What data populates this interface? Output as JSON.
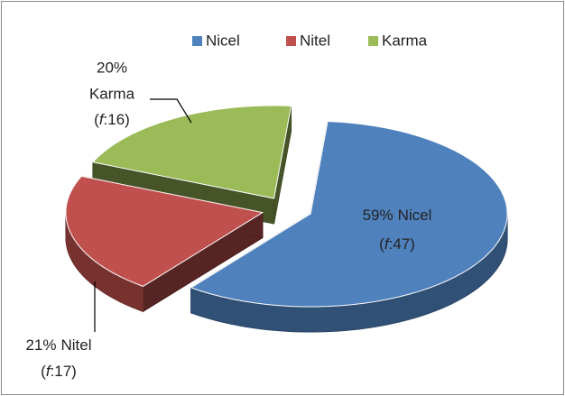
{
  "chart_data": {
    "type": "pie",
    "categories": [
      "Nicel",
      "Nitel",
      "Karma"
    ],
    "values": [
      59,
      21,
      20
    ],
    "value_labels": [
      "59%",
      "21%",
      "20%"
    ],
    "frequency_labels": [
      "(f:47)",
      "(f:17)",
      "(f:16)"
    ],
    "colors": [
      "#4f81bd",
      "#c0504d",
      "#9bbb59"
    ],
    "legend": "top"
  }
}
